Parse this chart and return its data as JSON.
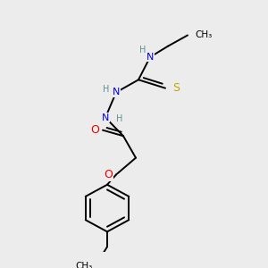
{
  "background_color": "#ececec",
  "atom_colors": {
    "C": "#000000",
    "H": "#5f9090",
    "N": "#0000ee",
    "O": "#ee0000",
    "S": "#bbaa00"
  },
  "figsize": [
    3.0,
    3.0
  ],
  "dpi": 100,
  "bond_lw": 1.4,
  "font_size": 7.5
}
